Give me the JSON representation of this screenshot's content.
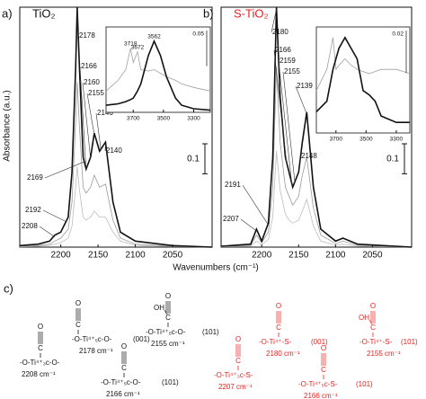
{
  "figure": {
    "xlabel": "Wavenumbers (cm⁻¹)",
    "ylabel": "Absorbance (a.u.)"
  },
  "chart_data": [
    {
      "type": "line",
      "panel_label": "a)",
      "title": "TiO₂",
      "title_color": "#111111",
      "xlim": [
        2255,
        1997
      ],
      "ylim": [
        0,
        0.8
      ],
      "xticks": [
        2200,
        2150,
        2100,
        2050
      ],
      "x": [
        2255,
        2230,
        2215,
        2208,
        2200,
        2190,
        2185,
        2180,
        2178,
        2175,
        2170,
        2166,
        2160,
        2155,
        2148,
        2140,
        2130,
        2120,
        2100,
        2050,
        1997
      ],
      "series": [
        {
          "color": "#111111",
          "values": [
            0.005,
            0.01,
            0.02,
            0.04,
            0.05,
            0.1,
            0.25,
            0.6,
            0.8,
            0.6,
            0.3,
            0.26,
            0.3,
            0.38,
            0.32,
            0.35,
            0.15,
            0.05,
            0.02,
            0.005,
            0
          ]
        },
        {
          "color": "#9a9a9a",
          "values": [
            0.002,
            0.005,
            0.01,
            0.02,
            0.03,
            0.06,
            0.15,
            0.42,
            0.55,
            0.4,
            0.2,
            0.18,
            0.2,
            0.24,
            0.2,
            0.21,
            0.09,
            0.03,
            0.01,
            0.003,
            0
          ]
        },
        {
          "color": "#bdbdbd",
          "values": [
            0.001,
            0.003,
            0.006,
            0.01,
            0.015,
            0.03,
            0.07,
            0.2,
            0.27,
            0.19,
            0.1,
            0.09,
            0.1,
            0.12,
            0.1,
            0.1,
            0.05,
            0.02,
            0.006,
            0.002,
            0
          ]
        }
      ],
      "annotations": [
        2178,
        2166,
        2160,
        2155,
        2146,
        2140,
        2169,
        2192,
        2208
      ],
      "scale_bar": 0.1,
      "inset": {
        "xlim": [
          3880,
          3190
        ],
        "ylim": [
          0,
          0.12
        ],
        "xticks": [
          3700,
          3500,
          3300
        ],
        "scale_bar": 0.05,
        "x": [
          3880,
          3800,
          3750,
          3718,
          3700,
          3672,
          3650,
          3600,
          3562,
          3520,
          3480,
          3420,
          3380,
          3300,
          3190
        ],
        "series": [
          {
            "color": "#111111",
            "values": [
              0.01,
              0.012,
              0.015,
              0.018,
              0.02,
              0.03,
              0.04,
              0.08,
              0.1,
              0.08,
              0.05,
              0.02,
              0.01,
              0.005,
              0.003
            ]
          },
          {
            "color": "#a0a0a0",
            "values": [
              0.03,
              0.045,
              0.06,
              0.09,
              0.07,
              0.085,
              0.06,
              0.058,
              0.06,
              0.055,
              0.05,
              0.045,
              0.04,
              0.035,
              0.03
            ]
          }
        ],
        "annotations": [
          3718,
          3672,
          3562
        ]
      }
    },
    {
      "type": "line",
      "panel_label": "b)",
      "title": "S-TiO₂",
      "title_color": "#e8211f",
      "xlim": [
        2255,
        1997
      ],
      "ylim": [
        0,
        0.8
      ],
      "xticks": [
        2200,
        2150,
        2100,
        2050
      ],
      "x": [
        2255,
        2215,
        2207,
        2200,
        2191,
        2185,
        2180,
        2175,
        2168,
        2163,
        2158,
        2150,
        2145,
        2139,
        2130,
        2120,
        2100,
        2090,
        2070,
        1997
      ],
      "series": [
        {
          "color": "#111111",
          "values": [
            0.003,
            0.01,
            0.06,
            0.02,
            0.08,
            0.3,
            0.8,
            0.5,
            0.3,
            0.25,
            0.2,
            0.25,
            0.35,
            0.45,
            0.2,
            0.06,
            0.02,
            0.03,
            0.01,
            0
          ]
        },
        {
          "color": "#9a9a9a",
          "values": [
            0.002,
            0.006,
            0.04,
            0.015,
            0.05,
            0.2,
            0.6,
            0.35,
            0.2,
            0.17,
            0.14,
            0.17,
            0.24,
            0.3,
            0.13,
            0.04,
            0.012,
            0.02,
            0.006,
            0
          ]
        },
        {
          "color": "#bdbdbd",
          "values": [
            0.001,
            0.003,
            0.02,
            0.008,
            0.025,
            0.1,
            0.32,
            0.19,
            0.11,
            0.09,
            0.08,
            0.09,
            0.12,
            0.16,
            0.07,
            0.02,
            0.006,
            0.01,
            0.003,
            0
          ]
        }
      ],
      "annotations": [
        2180,
        2166,
        2159,
        2155,
        2139,
        2148,
        2191,
        2207
      ],
      "scale_bar": 0.1,
      "inset": {
        "xlim": [
          3830,
          3210
        ],
        "ylim": [
          0,
          0.05
        ],
        "xticks": [
          3700,
          3500,
          3300
        ],
        "scale_bar": 0.02,
        "x": [
          3830,
          3760,
          3720,
          3700,
          3680,
          3640,
          3600,
          3560,
          3520,
          3480,
          3440,
          3400,
          3300,
          3210
        ],
        "series": [
          {
            "color": "#111111",
            "values": [
              0.01,
              0.015,
              0.03,
              0.035,
              0.04,
              0.045,
              0.04,
              0.035,
              0.02,
              0.018,
              0.015,
              0.008,
              0.005,
              0.005
            ]
          },
          {
            "color": "#a0a0a0",
            "values": [
              0.02,
              0.03,
              0.045,
              0.03,
              0.032,
              0.035,
              0.032,
              0.03,
              0.029,
              0.028,
              0.029,
              0.03,
              0.03,
              0.028
            ]
          }
        ],
        "annotations": []
      }
    }
  ],
  "structures": {
    "label": "c)",
    "co": [
      "O",
      "C"
    ],
    "oh": "OH",
    "items": [
      {
        "formula": "-O-Ti⁴⁺₃c-O-",
        "wavenumber": "2208 cm⁻¹",
        "color": "#111111",
        "oh": false
      },
      {
        "formula": "-O-Ti⁴⁺₅c-O-",
        "facet": "(001)",
        "wavenumber": "2178 cm⁻¹",
        "color": "#111111",
        "oh": false
      },
      {
        "formula": "-O-Ti⁴⁺₅c-O-",
        "facet": "(101)",
        "wavenumber": "2166 cm⁻¹",
        "color": "#111111",
        "oh": false
      },
      {
        "formula": "-O-Ti⁴⁺₅c-O-",
        "facet": "(101)",
        "wavenumber": "2155 cm⁻¹",
        "color": "#111111",
        "oh": true
      },
      {
        "formula": "-O-Ti⁴⁺-S-",
        "facet": "(001)",
        "wavenumber": "2180 cm⁻¹",
        "color": "#e8211f",
        "oh": false
      },
      {
        "formula": "-O-Ti⁴⁺₃c-S-",
        "wavenumber": "2207 cm⁻¹",
        "color": "#e8211f",
        "oh": false
      },
      {
        "formula": "-O-Ti⁴⁺₅c-S-",
        "facet": "(101)",
        "wavenumber": "2166 cm⁻¹",
        "color": "#e8211f",
        "oh": false
      },
      {
        "formula": "-O-Ti⁴⁺-S-",
        "facet": "(101)",
        "wavenumber": "2155 cm⁻¹",
        "color": "#e8211f",
        "oh": true
      }
    ]
  }
}
